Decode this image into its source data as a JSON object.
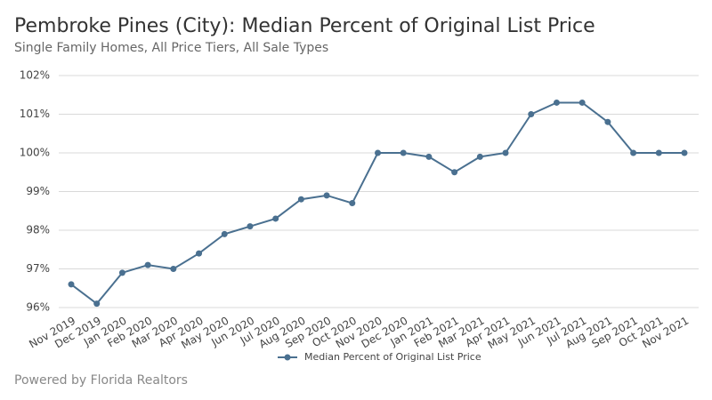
{
  "chart_data": {
    "type": "line",
    "title": "Pembroke Pines (City): Median Percent of Original List Price",
    "subtitle": "Single Family Homes, All Price Tiers, All Sale Types",
    "footer": "Powered by Florida Realtors",
    "categories": [
      "Nov 2019",
      "Dec 2019",
      "Jan 2020",
      "Feb 2020",
      "Mar 2020",
      "Apr 2020",
      "May 2020",
      "Jun 2020",
      "Jul 2020",
      "Aug 2020",
      "Sep 2020",
      "Oct 2020",
      "Nov 2020",
      "Dec 2020",
      "Jan 2021",
      "Feb 2021",
      "Mar 2021",
      "Apr 2021",
      "May 2021",
      "Jun 2021",
      "Jul 2021",
      "Aug 2021",
      "Sep 2021",
      "Oct 2021",
      "Nov 2021"
    ],
    "series": [
      {
        "name": "Median Percent of Original List Price",
        "color": "#4a7090",
        "values": [
          96.6,
          96.1,
          96.9,
          97.1,
          97.0,
          97.4,
          97.9,
          98.1,
          98.3,
          98.8,
          98.9,
          98.7,
          100.0,
          100.0,
          99.9,
          99.5,
          99.9,
          100.0,
          101.0,
          101.3,
          101.3,
          100.8,
          100.0,
          100.0,
          100.0
        ]
      }
    ],
    "ylim": [
      96,
      102
    ],
    "yticks": [
      {
        "value": 96,
        "label": "96%"
      },
      {
        "value": 97,
        "label": "97%"
      },
      {
        "value": 98,
        "label": "98%"
      },
      {
        "value": 99,
        "label": "99%"
      },
      {
        "value": 100,
        "label": "100%"
      },
      {
        "value": 101,
        "label": "101%"
      },
      {
        "value": 102,
        "label": "102%"
      }
    ],
    "grid": true,
    "legend": "bottom"
  }
}
